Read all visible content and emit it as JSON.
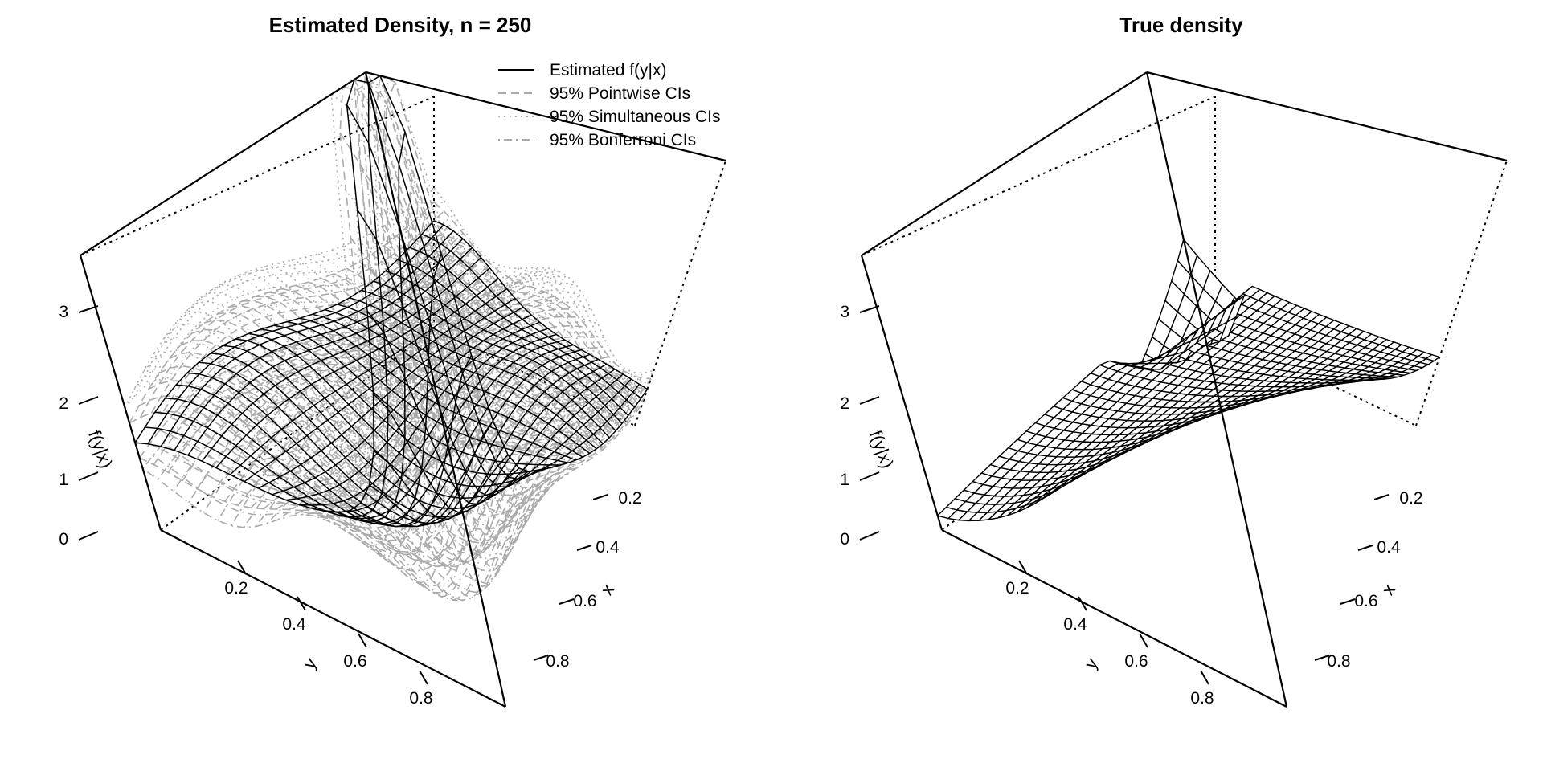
{
  "chart_data": [
    {
      "type": "surface3d",
      "title": "Estimated Density, n =  250",
      "xlabel": "x",
      "ylabel": "y",
      "zlabel": "f(y|x)",
      "xlim": [
        0,
        1
      ],
      "ylim": [
        0,
        1
      ],
      "zlim": [
        0,
        3.8
      ],
      "x_ticks": [
        "0.2",
        "0.4",
        "0.6",
        "0.8"
      ],
      "y_ticks": [
        "0.2",
        "0.4",
        "0.6",
        "0.8"
      ],
      "z_ticks": [
        "0",
        "1",
        "2",
        "3"
      ],
      "grid_n": 25,
      "colors": {
        "surface": "#000000",
        "ci": "#aaaaaa",
        "box": "#000000"
      },
      "legend": {
        "position": "top-right",
        "entries": [
          {
            "label": "Estimated f(y|x)",
            "line_style": "solid",
            "color": "#000000"
          },
          {
            "label": "95% Pointwise CIs",
            "line_style": "dashed",
            "color": "#aaaaaa"
          },
          {
            "label": "95% Simultaneous CIs",
            "line_style": "dotted",
            "color": "#aaaaaa"
          },
          {
            "label": "95% Bonferroni CIs",
            "line_style": "dotdash",
            "color": "#aaaaaa"
          }
        ]
      }
    },
    {
      "type": "surface3d",
      "title": "True density",
      "xlabel": "x",
      "ylabel": "y",
      "zlabel": "f(y|x)",
      "xlim": [
        0,
        1
      ],
      "ylim": [
        0,
        1
      ],
      "zlim": [
        0,
        3.8
      ],
      "x_ticks": [
        "0.2",
        "0.4",
        "0.6",
        "0.8"
      ],
      "y_ticks": [
        "0.2",
        "0.4",
        "0.6",
        "0.8"
      ],
      "z_ticks": [
        "0",
        "1",
        "2",
        "3"
      ],
      "grid_n": 30,
      "colors": {
        "surface": "#000000",
        "box": "#000000"
      }
    }
  ]
}
